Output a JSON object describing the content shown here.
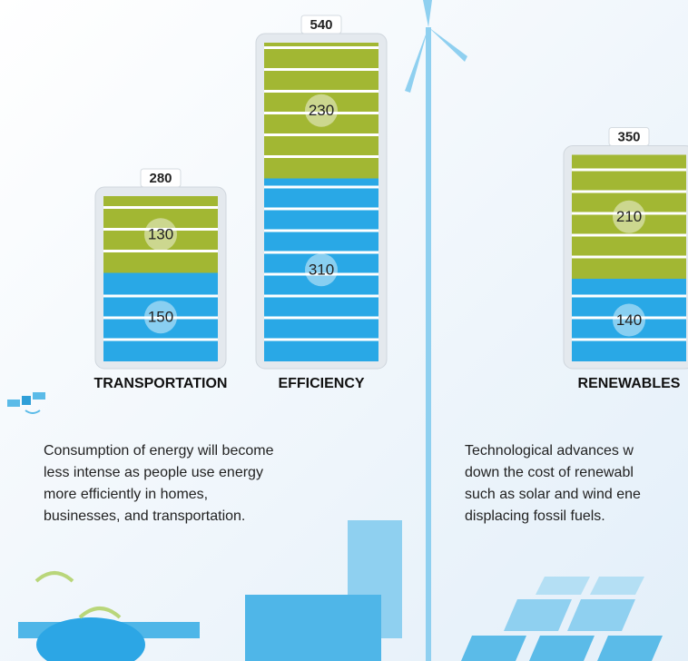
{
  "chart_data": {
    "type": "stacked-bar",
    "categories": [
      "TRANSPORTATION",
      "EFFICIENCY",
      "RENEWABLES"
    ],
    "totals": [
      280,
      540,
      350
    ],
    "series": [
      {
        "color": "#29a8e6",
        "values": [
          150,
          310,
          140
        ]
      },
      {
        "color": "#a2b733",
        "values": [
          130,
          230,
          210
        ]
      }
    ],
    "annotations": [
      [
        "Consumption of energy will become",
        "less intense as people use energy",
        "more efficiently in homes,",
        "businesses, and transportation."
      ],
      [
        "Technological advances w",
        "down the cost of renewabl",
        "such as solar and wind ene",
        "displacing fossil fuels."
      ]
    ]
  }
}
